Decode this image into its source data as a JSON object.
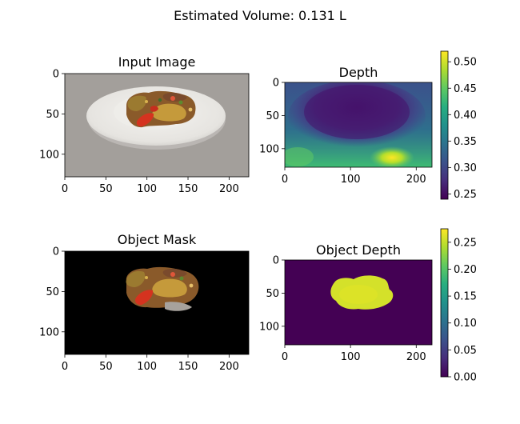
{
  "figure": {
    "suptitle": "Estimated Volume: 0.131 L"
  },
  "chart_data": [
    {
      "type": "heatmap",
      "name": "input-image",
      "title": "Input Image",
      "content": "photo",
      "xlim": [
        0,
        224
      ],
      "ylim": [
        128,
        0
      ],
      "xticks": [
        0,
        50,
        100,
        150,
        200
      ],
      "yticks": [
        0,
        50,
        100
      ],
      "colorbar": false
    },
    {
      "type": "heatmap",
      "name": "depth",
      "title": "Depth",
      "colormap": "viridis",
      "xlim": [
        0,
        224
      ],
      "ylim": [
        128,
        0
      ],
      "xticks": [
        0,
        100,
        200
      ],
      "yticks": [
        0,
        50,
        100
      ],
      "colorbar": true,
      "clim": [
        0.24,
        0.52
      ],
      "colorbar_ticks": [
        0.25,
        0.3,
        0.35,
        0.4,
        0.45,
        0.5
      ]
    },
    {
      "type": "heatmap",
      "name": "object-mask",
      "title": "Object Mask",
      "content": "masked-photo",
      "xlim": [
        0,
        224
      ],
      "ylim": [
        128,
        0
      ],
      "xticks": [
        0,
        50,
        100,
        150,
        200
      ],
      "yticks": [
        0,
        50,
        100
      ],
      "colorbar": false
    },
    {
      "type": "heatmap",
      "name": "object-depth",
      "title": "Object Depth",
      "colormap": "viridis",
      "xlim": [
        0,
        224
      ],
      "ylim": [
        128,
        0
      ],
      "xticks": [
        0,
        100,
        200
      ],
      "yticks": [
        0,
        50,
        100
      ],
      "colorbar": true,
      "clim": [
        0,
        0.275
      ],
      "colorbar_ticks": [
        0.0,
        0.05,
        0.1,
        0.15,
        0.2,
        0.25
      ]
    }
  ]
}
